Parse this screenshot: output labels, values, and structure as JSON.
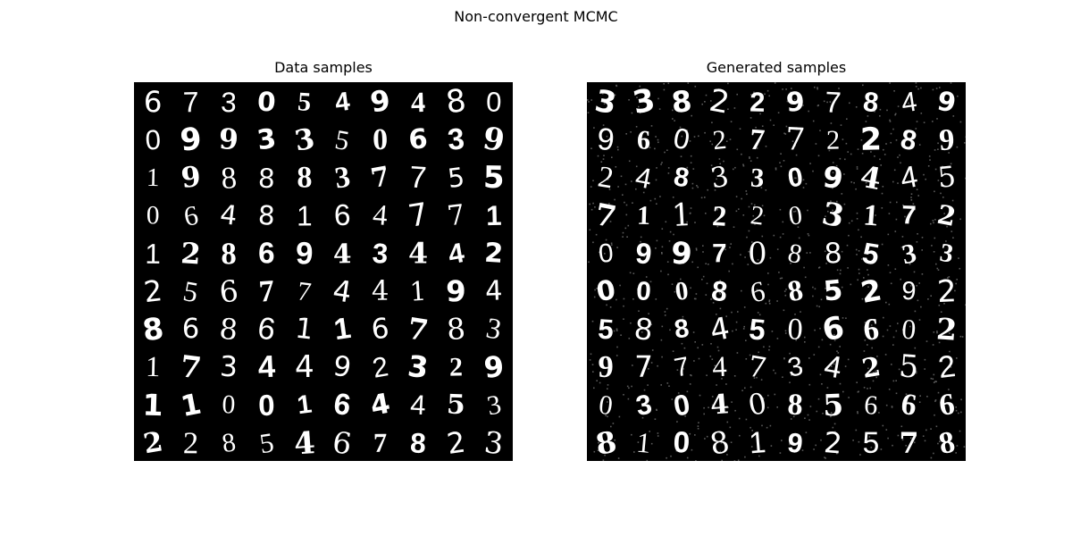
{
  "figure": {
    "suptitle": "Non-convergent MCMC"
  },
  "panels": [
    {
      "title": "Data samples",
      "rows": [
        [
          "6",
          "7",
          "3",
          "0",
          "5",
          "4",
          "9",
          "4",
          "8",
          "0"
        ],
        [
          "0",
          "9",
          "9",
          "3",
          "3",
          "5",
          "0",
          "6",
          "3",
          "9"
        ],
        [
          "1",
          "9",
          "8",
          "8",
          "8",
          "3",
          "7",
          "7",
          "5",
          "5"
        ],
        [
          "0",
          "6",
          "4",
          "8",
          "1",
          "6",
          "4",
          "7",
          "7",
          "1"
        ],
        [
          "1",
          "2",
          "8",
          "6",
          "9",
          "4",
          "3",
          "4",
          "4",
          "2"
        ],
        [
          "2",
          "5",
          "6",
          "7",
          "7",
          "4",
          "4",
          "1",
          "9",
          "4"
        ],
        [
          "8",
          "6",
          "8",
          "6",
          "1",
          "1",
          "6",
          "7",
          "8",
          "3"
        ],
        [
          "1",
          "7",
          "3",
          "4",
          "4",
          "9",
          "2",
          "3",
          "2",
          "9"
        ],
        [
          "1",
          "1",
          "0",
          "0",
          "1",
          "6",
          "4",
          "4",
          "5",
          "3"
        ],
        [
          "2",
          "2",
          "8",
          "5",
          "4",
          "6",
          "7",
          "8",
          "2",
          "3"
        ]
      ],
      "noise": false
    },
    {
      "title": "Generated samples",
      "rows": [
        [
          "3",
          "3",
          "8",
          "2",
          "2",
          "9",
          "7",
          "8",
          "4",
          "9"
        ],
        [
          "9",
          "6",
          "0",
          "2",
          "7",
          "7",
          "2",
          "2",
          "8",
          "9"
        ],
        [
          "2",
          "4",
          "8",
          "3",
          "3",
          "0",
          "9",
          "4",
          "4",
          "5"
        ],
        [
          "7",
          "1",
          "1",
          "2",
          "2",
          "0",
          "3",
          "1",
          "7",
          "2"
        ],
        [
          "0",
          "9",
          "9",
          "7",
          "0",
          "8",
          "8",
          "5",
          "3",
          "3"
        ],
        [
          "0",
          "0",
          "0",
          "8",
          "6",
          "8",
          "5",
          "2",
          "9",
          "2"
        ],
        [
          "5",
          "8",
          "8",
          "4",
          "5",
          "0",
          "6",
          "6",
          "0",
          "2"
        ],
        [
          "9",
          "7",
          "7",
          "4",
          "7",
          "3",
          "4",
          "2",
          "5",
          "2"
        ],
        [
          "0",
          "3",
          "0",
          "4",
          "0",
          "8",
          "5",
          "6",
          "6",
          "6"
        ],
        [
          "8",
          "1",
          "0",
          "8",
          "1",
          "9",
          "2",
          "5",
          "7",
          "8"
        ]
      ],
      "noise": true
    }
  ],
  "colors": {
    "background": "#000000",
    "digit": "#ffffff"
  }
}
